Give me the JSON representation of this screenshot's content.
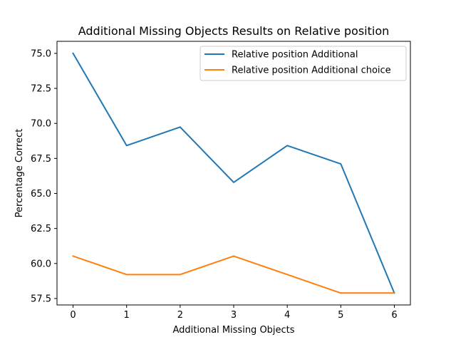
{
  "chart_data": {
    "type": "line",
    "title": "Additional Missing Objects Results on Relative position",
    "xlabel": "Additional Missing Objects",
    "ylabel": "Percentage Correct",
    "x": [
      0,
      1,
      2,
      3,
      4,
      5,
      6
    ],
    "xticks": [
      "0",
      "1",
      "2",
      "3",
      "4",
      "5",
      "6"
    ],
    "yticks": [
      "57.5",
      "60.0",
      "62.5",
      "65.0",
      "67.5",
      "70.0",
      "72.5",
      "75.0"
    ],
    "ytick_values": [
      57.5,
      60.0,
      62.5,
      65.0,
      67.5,
      70.0,
      72.5,
      75.0
    ],
    "xlim": [
      -0.3,
      6.3
    ],
    "ylim": [
      57.04,
      75.86
    ],
    "grid": false,
    "legend_position": "upper right",
    "series": [
      {
        "name": "Relative position Additional",
        "color": "#1f77b4",
        "values": [
          75.0,
          68.42,
          69.74,
          65.79,
          68.42,
          67.11,
          57.89
        ]
      },
      {
        "name": "Relative position Additional choice",
        "color": "#ff7f0e",
        "values": [
          60.53,
          59.21,
          59.21,
          60.53,
          59.21,
          57.89,
          57.89
        ]
      }
    ]
  }
}
